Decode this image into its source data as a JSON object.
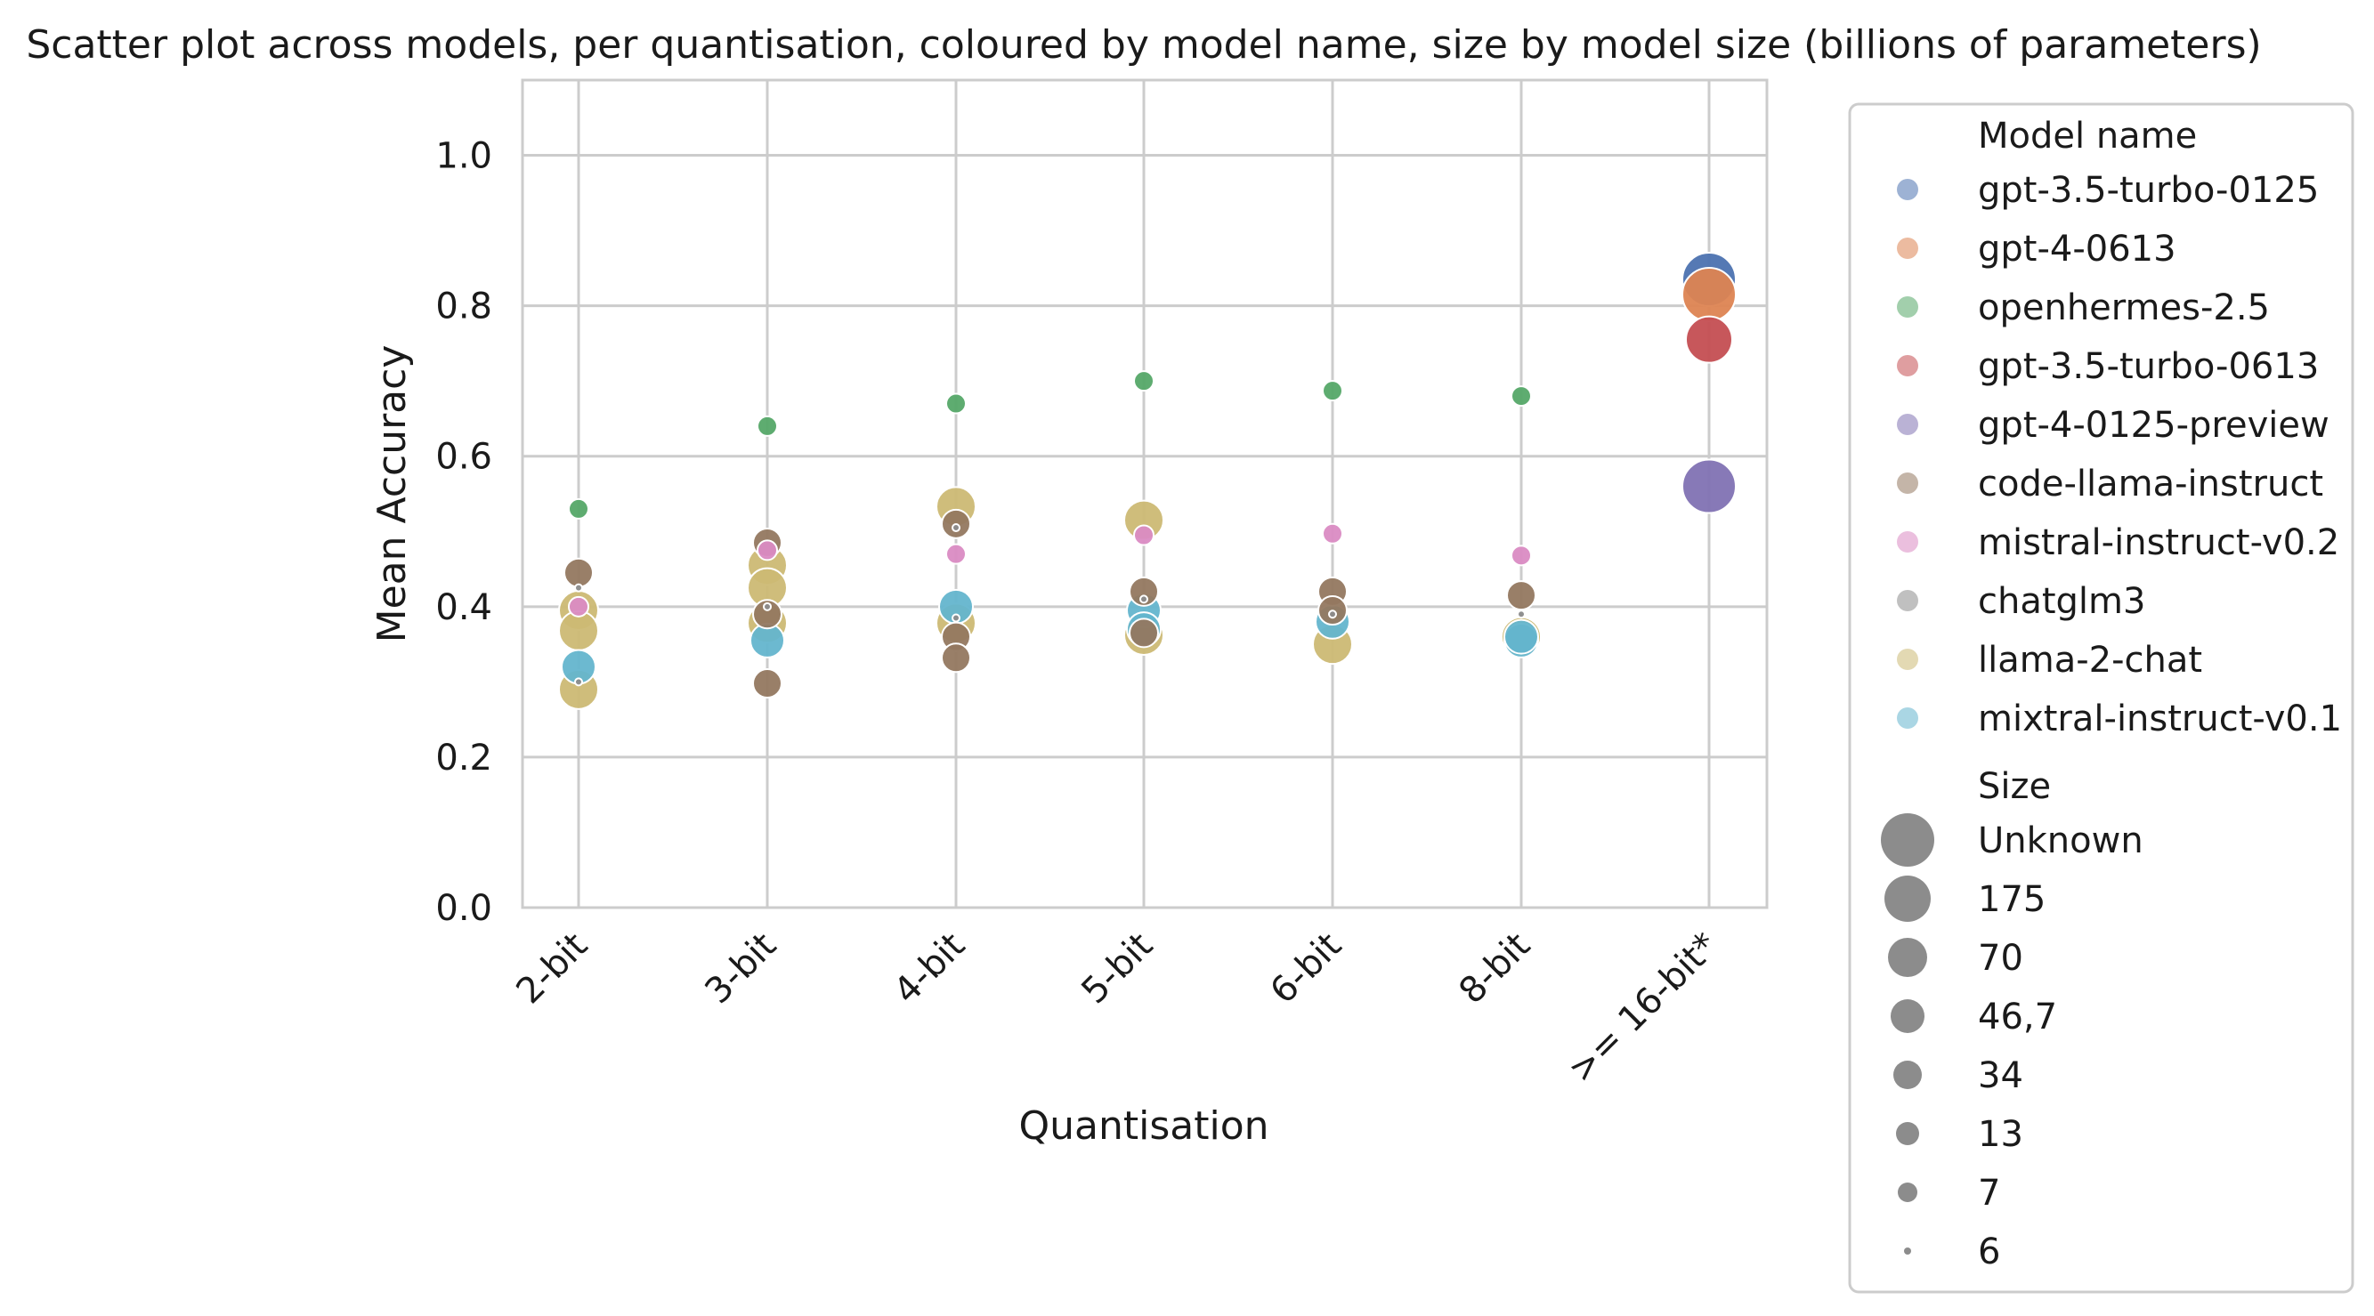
{
  "chart_data": {
    "type": "scatter",
    "title": "Scatter plot across models, per quantisation, coloured by model name, size by model size (billions of parameters)",
    "xlabel": "Quantisation",
    "ylabel": "Mean Accuracy",
    "categories": [
      "2-bit",
      "3-bit",
      "4-bit",
      "5-bit",
      "6-bit",
      "8-bit",
      ">= 16-bit*"
    ],
    "ylim": [
      0.0,
      1.1
    ],
    "yticks": [
      0.0,
      0.2,
      0.4,
      0.6,
      0.8,
      1.0
    ],
    "ytick_labels": [
      "0.0",
      "0.2",
      "0.4",
      "0.6",
      "0.8",
      "1.0"
    ],
    "grid": true,
    "legend_position": "outside-right",
    "legend_color_title": "Model name",
    "legend_size_title": "Size",
    "size_levels": [
      {
        "label": "Unknown",
        "rank": 8
      },
      {
        "label": "175",
        "rank": 7
      },
      {
        "label": "70",
        "rank": 6
      },
      {
        "label": "46,7",
        "rank": 5
      },
      {
        "label": "34",
        "rank": 4
      },
      {
        "label": "13",
        "rank": 3
      },
      {
        "label": "7",
        "rank": 2
      },
      {
        "label": "6",
        "rank": 1
      }
    ],
    "series": [
      {
        "name": "gpt-3.5-turbo-0125",
        "color": "#4c72b0",
        "size": "Unknown",
        "points": [
          {
            "x": ">= 16-bit*",
            "y": 0.835
          }
        ]
      },
      {
        "name": "gpt-4-0613",
        "color": "#dd8452",
        "size": "Unknown",
        "points": [
          {
            "x": ">= 16-bit*",
            "y": 0.815
          }
        ]
      },
      {
        "name": "openhermes-2.5",
        "color": "#55a868",
        "size": "7",
        "points": [
          {
            "x": "2-bit",
            "y": 0.53
          },
          {
            "x": "3-bit",
            "y": 0.64
          },
          {
            "x": "4-bit",
            "y": 0.67
          },
          {
            "x": "5-bit",
            "y": 0.7
          },
          {
            "x": "6-bit",
            "y": 0.687
          },
          {
            "x": "8-bit",
            "y": 0.68
          }
        ]
      },
      {
        "name": "gpt-3.5-turbo-0613",
        "color": "#c44e52",
        "size": "175",
        "points": [
          {
            "x": ">= 16-bit*",
            "y": 0.755
          }
        ]
      },
      {
        "name": "gpt-4-0125-preview",
        "color": "#8172b3",
        "size": "Unknown",
        "points": [
          {
            "x": ">= 16-bit*",
            "y": 0.56
          }
        ]
      },
      {
        "name": "code-llama-instruct",
        "color": "#937860",
        "size": "34",
        "points": [
          {
            "x": "2-bit",
            "y": 0.445
          },
          {
            "x": "3-bit",
            "y": 0.39
          },
          {
            "x": "3-bit",
            "y": 0.485
          },
          {
            "x": "3-bit",
            "y": 0.298
          },
          {
            "x": "4-bit",
            "y": 0.36
          },
          {
            "x": "4-bit",
            "y": 0.332
          },
          {
            "x": "4-bit",
            "y": 0.51
          },
          {
            "x": "5-bit",
            "y": 0.42
          },
          {
            "x": "5-bit",
            "y": 0.365
          },
          {
            "x": "6-bit",
            "y": 0.42
          },
          {
            "x": "6-bit",
            "y": 0.395
          },
          {
            "x": "8-bit",
            "y": 0.415
          }
        ]
      },
      {
        "name": "mistral-instruct-v0.2",
        "color": "#da8bc3",
        "size": "7",
        "points": [
          {
            "x": "2-bit",
            "y": 0.4
          },
          {
            "x": "3-bit",
            "y": 0.475
          },
          {
            "x": "4-bit",
            "y": 0.47
          },
          {
            "x": "5-bit",
            "y": 0.495
          },
          {
            "x": "6-bit",
            "y": 0.497
          },
          {
            "x": "8-bit",
            "y": 0.468
          }
        ]
      },
      {
        "name": "chatglm3",
        "color": "#8c8c8c",
        "size": "6",
        "points": [
          {
            "x": "2-bit",
            "y": 0.425
          },
          {
            "x": "2-bit",
            "y": 0.3
          },
          {
            "x": "3-bit",
            "y": 0.4
          },
          {
            "x": "4-bit",
            "y": 0.505
          },
          {
            "x": "4-bit",
            "y": 0.385
          },
          {
            "x": "5-bit",
            "y": 0.41
          },
          {
            "x": "6-bit",
            "y": 0.39
          },
          {
            "x": "8-bit",
            "y": 0.39
          }
        ]
      },
      {
        "name": "llama-2-chat",
        "color": "#ccb974",
        "size": "70",
        "points": [
          {
            "x": "2-bit",
            "y": 0.395
          },
          {
            "x": "2-bit",
            "y": 0.368
          },
          {
            "x": "2-bit",
            "y": 0.29
          },
          {
            "x": "3-bit",
            "y": 0.455
          },
          {
            "x": "3-bit",
            "y": 0.425
          },
          {
            "x": "3-bit",
            "y": 0.378
          },
          {
            "x": "4-bit",
            "y": 0.533
          },
          {
            "x": "4-bit",
            "y": 0.378
          },
          {
            "x": "5-bit",
            "y": 0.515
          },
          {
            "x": "5-bit",
            "y": 0.362
          },
          {
            "x": "6-bit",
            "y": 0.35
          },
          {
            "x": "8-bit",
            "y": 0.36
          }
        ]
      },
      {
        "name": "mixtral-instruct-v0.1",
        "color": "#64b5cd",
        "size": "46,7",
        "points": [
          {
            "x": "2-bit",
            "y": 0.32
          },
          {
            "x": "3-bit",
            "y": 0.355
          },
          {
            "x": "4-bit",
            "y": 0.4
          },
          {
            "x": "5-bit",
            "y": 0.395
          },
          {
            "x": "5-bit",
            "y": 0.37
          },
          {
            "x": "6-bit",
            "y": 0.38
          },
          {
            "x": "8-bit",
            "y": 0.355
          },
          {
            "x": "8-bit",
            "y": 0.36
          }
        ]
      }
    ]
  }
}
